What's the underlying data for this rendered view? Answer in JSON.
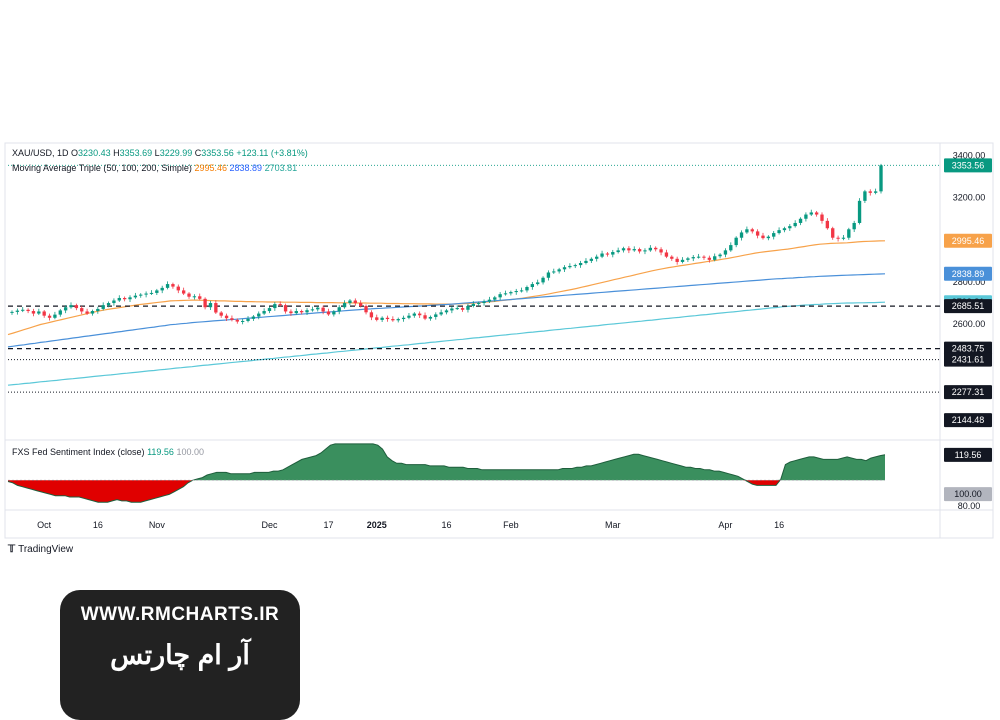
{
  "header": {
    "symbol": "XAU/USD, 1D",
    "o_label": "O",
    "open": "3230.43",
    "h_label": "H",
    "high": "3353.69",
    "l_label": "L",
    "low": "3229.99",
    "c_label": "C",
    "close": "3353.56",
    "change": "+123.11 (+3.81%)",
    "ma_label": "Moving Average Triple (50, 100, 200, Simple)",
    "ma50": "2995.46",
    "ma100": "2838.89",
    "ma200": "2703.81"
  },
  "sentiment_header": {
    "label": "FXS Fed Sentiment Index (close)",
    "value": "119.56",
    "baseline": "100.00"
  },
  "branding": {
    "tradingview": "TradingView",
    "watermark_url": "WWW.RMCHARTS.IR",
    "watermark_name": "آر ام چارتس"
  },
  "colors": {
    "up": "#089981",
    "down": "#f23645",
    "ma50": "#f7a24a",
    "ma100": "#4a90d9",
    "ma200": "#5bc8d8",
    "sentiment_above": "#3a8f5e",
    "sentiment_below": "#e00000",
    "last_price_badge": "#089981"
  },
  "chart_data": [
    {
      "type": "candlestick",
      "title": "XAU/USD, 1D",
      "x_tick_labels": [
        "Oct",
        "16",
        "Nov",
        "Dec",
        "17",
        "2025",
        "16",
        "Feb",
        "Mar",
        "Apr",
        "16"
      ],
      "y_tick_labels": [
        "3400.00",
        "3200.00",
        "2800.00",
        "2600.00"
      ],
      "ylim": [
        2050,
        3450
      ],
      "scale": "linear",
      "grid": false,
      "close": [
        2658,
        2664,
        2668,
        2662,
        2650,
        2660,
        2640,
        2630,
        2645,
        2665,
        2680,
        2690,
        2676,
        2660,
        2650,
        2662,
        2672,
        2690,
        2700,
        2712,
        2724,
        2718,
        2727,
        2735,
        2740,
        2745,
        2748,
        2760,
        2772,
        2790,
        2778,
        2760,
        2745,
        2730,
        2732,
        2720,
        2680,
        2700,
        2655,
        2640,
        2628,
        2620,
        2612,
        2615,
        2625,
        2636,
        2650,
        2662,
        2676,
        2695,
        2690,
        2660,
        2652,
        2662,
        2656,
        2666,
        2670,
        2678,
        2660,
        2646,
        2660,
        2680,
        2700,
        2712,
        2700,
        2686,
        2656,
        2632,
        2620,
        2630,
        2624,
        2618,
        2624,
        2630,
        2640,
        2650,
        2642,
        2626,
        2634,
        2646,
        2656,
        2665,
        2674,
        2676,
        2668,
        2686,
        2696,
        2700,
        2707,
        2716,
        2727,
        2742,
        2746,
        2752,
        2757,
        2760,
        2776,
        2790,
        2798,
        2820,
        2845,
        2850,
        2860,
        2870,
        2876,
        2880,
        2890,
        2900,
        2910,
        2920,
        2935,
        2930,
        2942,
        2950,
        2960,
        2950,
        2956,
        2945,
        2950,
        2962,
        2955,
        2940,
        2920,
        2910,
        2895,
        2905,
        2912,
        2918,
        2920,
        2915,
        2905,
        2922,
        2930,
        2950,
        2975,
        3010,
        3035,
        3050,
        3040,
        3020,
        3008,
        3015,
        3032,
        3046,
        3055,
        3065,
        3080,
        3100,
        3120,
        3130,
        3120,
        3090,
        3055,
        3010,
        3005,
        3010,
        3050,
        3080,
        3185,
        3230,
        3223,
        3230,
        3353.56
      ],
      "series": [
        {
          "name": "Moving Average Triple (50, 100, 200, Simple) 50",
          "last": 2995.46,
          "values": [
            2550,
            2558,
            2566,
            2574,
            2582,
            2590,
            2598,
            2604,
            2610,
            2616,
            2622,
            2628,
            2634,
            2640,
            2646,
            2652,
            2658,
            2663,
            2668,
            2672,
            2676,
            2680,
            2684,
            2688,
            2692,
            2695,
            2698,
            2701,
            2704,
            2707,
            2710,
            2711,
            2712,
            2713,
            2714,
            2714,
            2713,
            2712,
            2711,
            2710,
            2710,
            2709,
            2708,
            2708,
            2707,
            2707,
            2706,
            2706,
            2705,
            2705,
            2705,
            2704,
            2704,
            2704,
            2703,
            2703,
            2703,
            2702,
            2702,
            2702,
            2702,
            2701,
            2701,
            2701,
            2700,
            2700,
            2700,
            2699,
            2699,
            2699,
            2698,
            2698,
            2698,
            2697,
            2697,
            2697,
            2696,
            2696,
            2696,
            2695,
            2695,
            2695,
            2695,
            2696,
            2697,
            2698,
            2700,
            2702,
            2704,
            2706,
            2708,
            2711,
            2714,
            2717,
            2720,
            2723,
            2727,
            2731,
            2735,
            2739,
            2744,
            2749,
            2754,
            2759,
            2764,
            2769,
            2775,
            2781,
            2787,
            2793,
            2799,
            2805,
            2811,
            2817,
            2823,
            2829,
            2835,
            2841,
            2847,
            2853,
            2858,
            2863,
            2868,
            2872,
            2876,
            2880,
            2884,
            2888,
            2892,
            2896,
            2900,
            2904,
            2908,
            2912,
            2917,
            2922,
            2927,
            2932,
            2937,
            2941,
            2944,
            2947,
            2950,
            2953,
            2956,
            2960,
            2964,
            2968,
            2972,
            2976,
            2979,
            2981,
            2983,
            2984,
            2985,
            2986,
            2988,
            2990,
            2992,
            2993,
            2994,
            2995,
            2995.46
          ]
        },
        {
          "name": "Moving Average Triple (50, 100, 200, Simple) 100",
          "last": 2838.89,
          "values": [
            2492,
            2495,
            2499,
            2502,
            2506,
            2509,
            2513,
            2516,
            2520,
            2523,
            2527,
            2530,
            2534,
            2537,
            2541,
            2544,
            2548,
            2551,
            2555,
            2558,
            2562,
            2565,
            2569,
            2572,
            2576,
            2579,
            2583,
            2586,
            2590,
            2593,
            2597,
            2599,
            2602,
            2604,
            2607,
            2609,
            2611,
            2613,
            2615,
            2617,
            2619,
            2621,
            2623,
            2625,
            2627,
            2629,
            2631,
            2633,
            2635,
            2637,
            2639,
            2641,
            2643,
            2645,
            2647,
            2649,
            2651,
            2653,
            2655,
            2657,
            2659,
            2661,
            2663,
            2665,
            2667,
            2669,
            2671,
            2672,
            2674,
            2675,
            2677,
            2678,
            2680,
            2681,
            2683,
            2684,
            2686,
            2687,
            2689,
            2690,
            2692,
            2693,
            2695,
            2697,
            2699,
            2701,
            2703,
            2705,
            2707,
            2709,
            2711,
            2713,
            2715,
            2717,
            2719,
            2721,
            2723,
            2725,
            2727,
            2729,
            2731,
            2733,
            2735,
            2737,
            2739,
            2741,
            2743,
            2745,
            2747,
            2749,
            2751,
            2753,
            2755,
            2757,
            2759,
            2761,
            2763,
            2765,
            2767,
            2769,
            2771,
            2773,
            2775,
            2777,
            2779,
            2781,
            2783,
            2785,
            2787,
            2789,
            2791,
            2793,
            2795,
            2797,
            2799,
            2801,
            2803,
            2805,
            2807,
            2809,
            2811,
            2813,
            2815,
            2816,
            2818,
            2819,
            2821,
            2822,
            2824,
            2825,
            2827,
            2828,
            2829,
            2830,
            2831,
            2832,
            2833,
            2834,
            2835,
            2836,
            2837,
            2838,
            2838.89
          ]
        },
        {
          "name": "Moving Average Triple (50, 100, 200, Simple) 200",
          "last": 2703.81,
          "values": [
            2310,
            2313,
            2315,
            2318,
            2320,
            2323,
            2326,
            2328,
            2331,
            2333,
            2336,
            2339,
            2341,
            2344,
            2346,
            2349,
            2352,
            2354,
            2357,
            2359,
            2362,
            2365,
            2367,
            2370,
            2372,
            2375,
            2378,
            2380,
            2383,
            2385,
            2388,
            2391,
            2393,
            2396,
            2398,
            2401,
            2404,
            2406,
            2409,
            2411,
            2414,
            2417,
            2419,
            2422,
            2424,
            2427,
            2430,
            2432,
            2435,
            2437,
            2440,
            2443,
            2445,
            2448,
            2450,
            2453,
            2456,
            2458,
            2461,
            2463,
            2466,
            2469,
            2471,
            2474,
            2476,
            2479,
            2482,
            2484,
            2487,
            2489,
            2492,
            2495,
            2497,
            2500,
            2502,
            2505,
            2508,
            2510,
            2513,
            2515,
            2518,
            2521,
            2523,
            2526,
            2528,
            2531,
            2534,
            2536,
            2539,
            2541,
            2544,
            2547,
            2549,
            2552,
            2554,
            2557,
            2560,
            2562,
            2565,
            2567,
            2570,
            2573,
            2575,
            2578,
            2580,
            2583,
            2586,
            2588,
            2591,
            2593,
            2596,
            2599,
            2601,
            2604,
            2606,
            2609,
            2612,
            2614,
            2617,
            2619,
            2622,
            2625,
            2627,
            2630,
            2632,
            2635,
            2638,
            2640,
            2643,
            2645,
            2648,
            2651,
            2653,
            2656,
            2658,
            2661,
            2664,
            2666,
            2669,
            2671,
            2674,
            2677,
            2679,
            2682,
            2684,
            2686,
            2688,
            2690,
            2691,
            2693,
            2694,
            2696,
            2697,
            2698,
            2699,
            2700,
            2700,
            2701,
            2701,
            2702,
            2702,
            2703,
            2703.81
          ]
        }
      ],
      "levels": [
        {
          "label": "2685.51",
          "value": 2685.51,
          "style": "dashed"
        },
        {
          "label": "2483.75",
          "value": 2483.75,
          "style": "dashed"
        },
        {
          "label": "2431.61",
          "value": 2431.61,
          "style": "dotted"
        },
        {
          "label": "2277.31",
          "value": 2277.31,
          "style": "dotted"
        },
        {
          "label": "2144.48",
          "value": 2144.48,
          "style": "none"
        }
      ],
      "last_price": {
        "label": "3353.56",
        "value": 3353.56
      }
    },
    {
      "type": "area",
      "title": "FXS Fed Sentiment Index (close)",
      "y_tick_labels": [
        "80.00"
      ],
      "ylim": [
        77,
        131
      ],
      "baseline": 100,
      "last": 119.56,
      "values": [
        99,
        98,
        96,
        95,
        94,
        93,
        92,
        91,
        90,
        89,
        88,
        88,
        88,
        87,
        87,
        87,
        86,
        85,
        84,
        83,
        83,
        83,
        84,
        85,
        84,
        84,
        83,
        83,
        83,
        84,
        85,
        86,
        87,
        88,
        89,
        91,
        93,
        95,
        98,
        100,
        101,
        102,
        104,
        105,
        106,
        106,
        106,
        105,
        105,
        105,
        105,
        105,
        106,
        106,
        106,
        106,
        107,
        107,
        108,
        110,
        112,
        114,
        116,
        117,
        118,
        119,
        121,
        124,
        127,
        128,
        128,
        128,
        128,
        128,
        128,
        128,
        128,
        128,
        127,
        124,
        118,
        115,
        113,
        113,
        112,
        112,
        112,
        112,
        112,
        111,
        111,
        111,
        111,
        110,
        110,
        110,
        110,
        109,
        109,
        109,
        108,
        108,
        108,
        108,
        108,
        108,
        108,
        108,
        108,
        108,
        108,
        108,
        108,
        108,
        108,
        108,
        108,
        109,
        109,
        109,
        110,
        110,
        111,
        111,
        112,
        113,
        114,
        115,
        116,
        117,
        118,
        119,
        120,
        120,
        119,
        118,
        117,
        116,
        115,
        114,
        113,
        112,
        111,
        110,
        110,
        109,
        109,
        108,
        108,
        107,
        107,
        106,
        105,
        104,
        103,
        101,
        99,
        97,
        96,
        96,
        96,
        96,
        96,
        100.5,
        112,
        114,
        115,
        116,
        117,
        118,
        118,
        117,
        116,
        116,
        116,
        116,
        117,
        118,
        117,
        116,
        116,
        115,
        117,
        118,
        119,
        119.56
      ]
    }
  ]
}
